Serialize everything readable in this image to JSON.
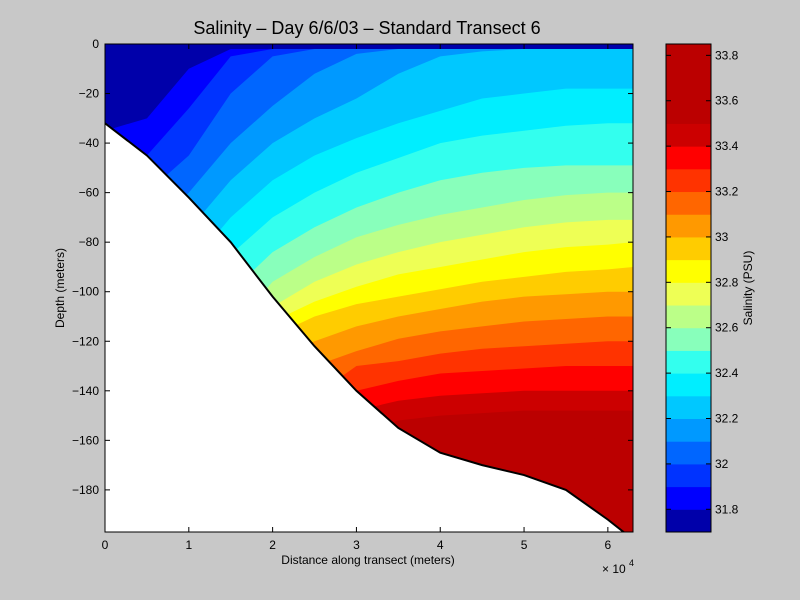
{
  "chart_data": {
    "type": "heatmap",
    "title": "Salinity – Day 6/6/03 – Standard Transect 6",
    "xlabel": "Distance along transect (meters)",
    "ylabel": "Depth (meters)",
    "x_exponent_label": "× 10",
    "x_exponent_power": "4",
    "xlim": [
      0,
      6.3
    ],
    "ylim": [
      -197,
      0
    ],
    "xticks": [
      0,
      1,
      2,
      3,
      4,
      5,
      6
    ],
    "xtick_labels": [
      "0",
      "1",
      "2",
      "3",
      "4",
      "5",
      "6"
    ],
    "yticks": [
      0,
      -20,
      -40,
      -60,
      -80,
      -100,
      -120,
      -140,
      -160,
      -180
    ],
    "ytick_labels": [
      "0",
      "−20",
      "−40",
      "−60",
      "−80",
      "−100",
      "−120",
      "−140",
      "−160",
      "−180"
    ],
    "colorbar": {
      "label": "Salinity (PSU)",
      "range": [
        31.7,
        33.85
      ],
      "ticks": [
        31.8,
        32.0,
        32.2,
        32.4,
        32.6,
        32.8,
        33.0,
        33.2,
        33.4,
        33.6,
        33.8
      ],
      "tick_labels": [
        "31.8",
        "32",
        "32.2",
        "32.4",
        "32.6",
        "32.8",
        "33",
        "33.2",
        "33.4",
        "33.6",
        "33.8"
      ],
      "levels": [
        31.7,
        31.8,
        31.9,
        32.0,
        32.1,
        32.2,
        32.3,
        32.4,
        32.5,
        32.6,
        32.7,
        32.8,
        32.9,
        33.0,
        33.1,
        33.2,
        33.3,
        33.4,
        33.5,
        33.6,
        33.7,
        33.85
      ],
      "colors": [
        "#0000aa",
        "#0000ff",
        "#0033ff",
        "#0066ff",
        "#0099ff",
        "#00c8ff",
        "#00eeff",
        "#33ffee",
        "#88ffbb",
        "#bbff88",
        "#eeff55",
        "#ffff00",
        "#ffcc00",
        "#ff9900",
        "#ff6600",
        "#ff3300",
        "#ff0000",
        "#cc0000",
        "#bb0000",
        "#bb0000",
        "#bb0000"
      ]
    },
    "bottom_profile": {
      "x": [
        0,
        0.5,
        1.0,
        1.5,
        2.0,
        2.5,
        3.0,
        3.5,
        4.0,
        4.5,
        5.0,
        5.5,
        6.0,
        6.3
      ],
      "depth": [
        -32,
        -45,
        -62,
        -80,
        -102,
        -122,
        -140,
        -155,
        -165,
        -170,
        -174,
        -180,
        -192,
        -200
      ]
    },
    "salinity_contour_depths": {
      "x": [
        0,
        0.5,
        1.0,
        1.5,
        2.0,
        2.5,
        3.0,
        3.5,
        4.0,
        4.5,
        5.0,
        5.5,
        6.0,
        6.3
      ],
      "levels": [
        {
          "value": 31.8,
          "depth": [
            -35,
            -30,
            -10,
            -2,
            -2,
            -2,
            -2,
            -2,
            -2,
            -2,
            -2,
            -2,
            -2,
            -2
          ]
        },
        {
          "value": 31.9,
          "depth": [
            -60,
            -45,
            -26,
            -5,
            -2,
            -2,
            -2,
            -2,
            -2,
            -2,
            -2,
            -2,
            -2,
            -2
          ]
        },
        {
          "value": 32.0,
          "depth": [
            -75,
            -60,
            -45,
            -20,
            -5,
            -2,
            -2,
            -2,
            -2,
            -2,
            -2,
            -2,
            -2,
            -2
          ]
        },
        {
          "value": 32.1,
          "depth": [
            -90,
            -75,
            -60,
            -40,
            -25,
            -12,
            -4,
            -2,
            -2,
            -2,
            -2,
            -2,
            -2,
            -2
          ]
        },
        {
          "value": 32.2,
          "depth": [
            -110,
            -95,
            -75,
            -55,
            -40,
            -30,
            -22,
            -12,
            -5,
            -3,
            -2,
            -2,
            -2,
            -2
          ]
        },
        {
          "value": 32.3,
          "depth": [
            -130,
            -115,
            -90,
            -70,
            -55,
            -45,
            -38,
            -32,
            -27,
            -22,
            -20,
            -18,
            -18,
            -18
          ]
        },
        {
          "value": 32.4,
          "depth": [
            -145,
            -130,
            -105,
            -85,
            -70,
            -60,
            -52,
            -46,
            -40,
            -37,
            -35,
            -33,
            -32,
            -32
          ]
        },
        {
          "value": 32.5,
          "depth": [
            -160,
            -150,
            -120,
            -100,
            -84,
            -74,
            -66,
            -60,
            -55,
            -52,
            -50,
            -49,
            -49,
            -49
          ]
        },
        {
          "value": 32.6,
          "depth": [
            -180,
            -165,
            -135,
            -115,
            -96,
            -86,
            -78,
            -73,
            -69,
            -66,
            -63,
            -61,
            -60,
            -60
          ]
        },
        {
          "value": 32.7,
          "depth": [
            -200,
            -180,
            -150,
            -125,
            -106,
            -96,
            -89,
            -84,
            -80,
            -77,
            -74,
            -72,
            -71,
            -71
          ]
        },
        {
          "value": 32.8,
          "depth": [
            -200,
            -195,
            -165,
            -135,
            -112,
            -104,
            -98,
            -93,
            -90,
            -87,
            -84,
            -82,
            -81,
            -80
          ]
        },
        {
          "value": 32.9,
          "depth": [
            -200,
            -200,
            -180,
            -145,
            -118,
            -110,
            -105,
            -102,
            -99,
            -96,
            -94,
            -92,
            -91,
            -90
          ]
        },
        {
          "value": 33.0,
          "depth": [
            -200,
            -200,
            -195,
            -160,
            -128,
            -120,
            -114,
            -110,
            -107,
            -104,
            -102,
            -101,
            -100,
            -100
          ]
        },
        {
          "value": 33.1,
          "depth": [
            -200,
            -200,
            -200,
            -175,
            -140,
            -130,
            -124,
            -119,
            -116,
            -114,
            -112,
            -111,
            -110,
            -110
          ]
        },
        {
          "value": 33.2,
          "depth": [
            -200,
            -200,
            -200,
            -190,
            -155,
            -142,
            -130,
            -128,
            -125,
            -123,
            -122,
            -121,
            -120,
            -120
          ]
        },
        {
          "value": 33.3,
          "depth": [
            -200,
            -200,
            -200,
            -200,
            -170,
            -155,
            -140,
            -136,
            -133,
            -132,
            -131,
            -130,
            -130,
            -130
          ]
        },
        {
          "value": 33.4,
          "depth": [
            -200,
            -200,
            -200,
            -200,
            -185,
            -165,
            -148,
            -144,
            -142,
            -141,
            -140,
            -140,
            -140,
            -140
          ]
        },
        {
          "value": 33.5,
          "depth": [
            -200,
            -200,
            -200,
            -200,
            -200,
            -180,
            -158,
            -152,
            -150,
            -149,
            -148,
            -148,
            -148,
            -148
          ]
        },
        {
          "value": 33.6,
          "depth": [
            -200,
            -200,
            -200,
            -200,
            -200,
            -195,
            -170,
            -162,
            -158,
            -157,
            -157,
            -158,
            -160,
            -160
          ]
        },
        {
          "value": 33.7,
          "depth": [
            -200,
            -200,
            -200,
            -200,
            -200,
            -200,
            -185,
            -175,
            -166,
            -162,
            -160,
            -162,
            -166,
            -168
          ]
        }
      ]
    }
  }
}
